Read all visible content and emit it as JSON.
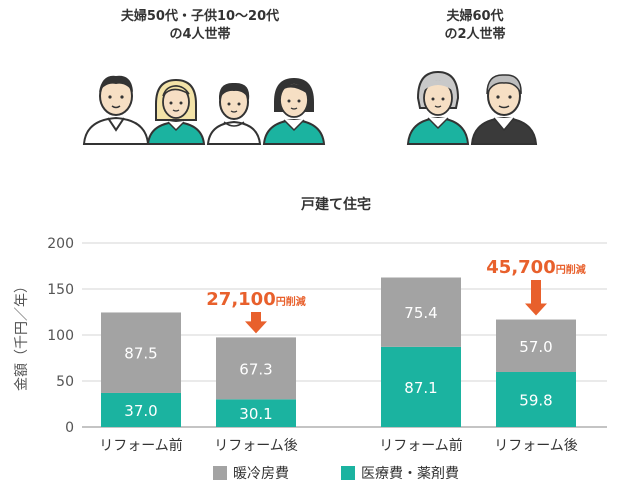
{
  "households": [
    {
      "line1": "夫婦50代・子供10〜20代",
      "line2": "の4人世帯"
    },
    {
      "line1": "夫婦60代",
      "line2": "の2人世帯"
    }
  ],
  "chart_data": {
    "type": "bar",
    "stacked": true,
    "title": "戸建て住宅",
    "ylabel": "金額（千円／年）",
    "ylim": [
      0,
      200
    ],
    "yticks": [
      0,
      50,
      100,
      150,
      200
    ],
    "grid": true,
    "categories": [
      "リフォーム前",
      "リフォーム後",
      "リフォーム前",
      "リフォーム後"
    ],
    "groups": [
      "夫婦50代・子供10〜20代の4人世帯",
      "夫婦60代の2人世帯"
    ],
    "series": [
      {
        "name": "医療費・薬剤費",
        "color": "#1bb3a0",
        "values": [
          37.0,
          30.1,
          87.1,
          59.8
        ],
        "labels": [
          "37.0",
          "30.1",
          "87.1",
          "59.8"
        ]
      },
      {
        "name": "暖冷房費",
        "color": "#a3a3a3",
        "values": [
          87.5,
          67.3,
          75.4,
          57.0
        ],
        "labels": [
          "87.5",
          "67.3",
          "75.4",
          "57.0"
        ]
      }
    ],
    "annotations": [
      {
        "group": 0,
        "amount": "27,100",
        "unit": "円削減"
      },
      {
        "group": 1,
        "amount": "45,700",
        "unit": "円削減"
      }
    ],
    "legend_position": "bottom",
    "legend_order": [
      "暖冷房費",
      "医療費・薬剤費"
    ],
    "accent_color": "#e8602c"
  }
}
